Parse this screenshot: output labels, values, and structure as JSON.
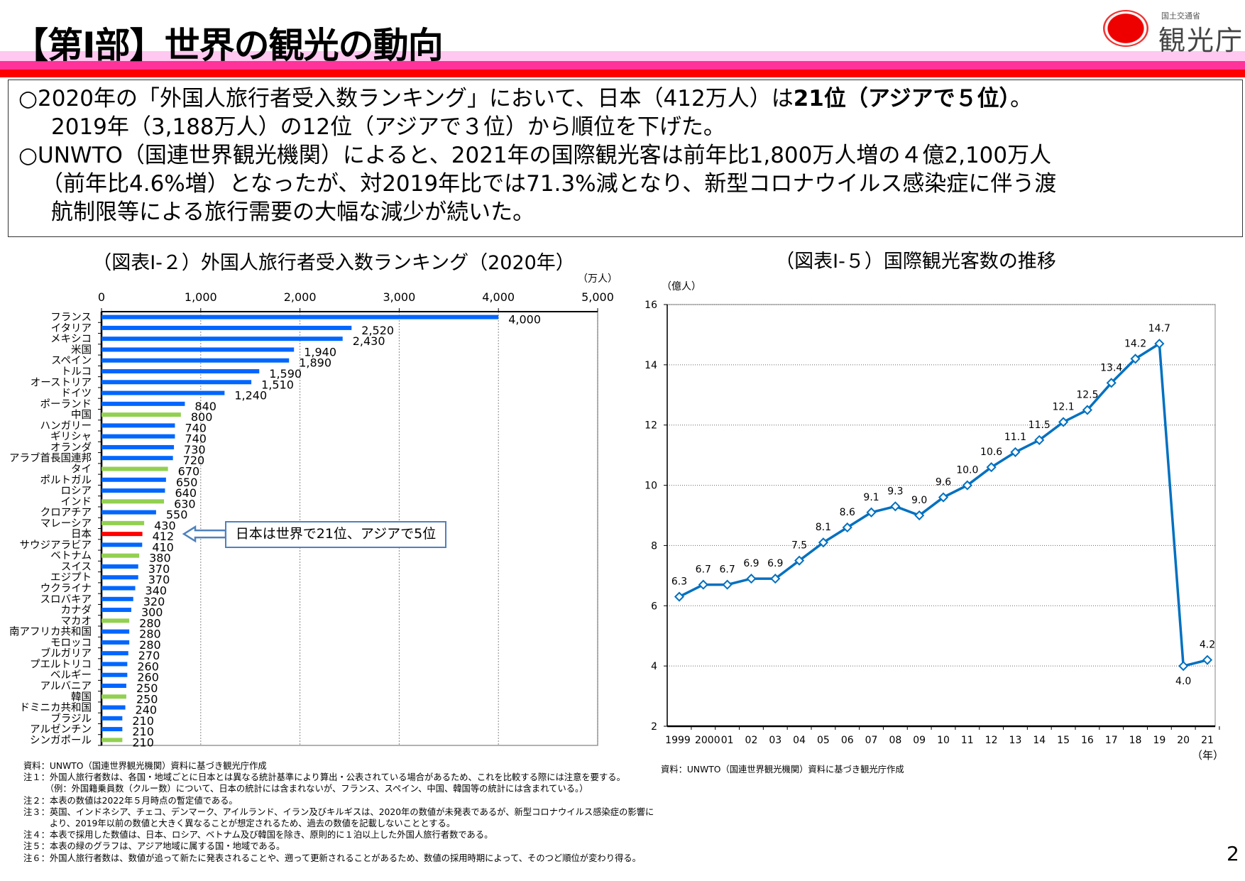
{
  "header": {
    "title": "【第Ⅰ部】世界の観光の動向",
    "logo_text": "観光庁",
    "logo_subtext": "国土交通省"
  },
  "colors": {
    "stripe_light": "#ffc8f0",
    "stripe_pink": "#ff3399",
    "stripe_red": "#ff0000",
    "bar_default": "#0066ff",
    "bar_asia": "#92d050",
    "bar_japan": "#ff0000",
    "line": "#0070c0"
  },
  "summary": {
    "lines": [
      {
        "pre": "○2020年の「外国人旅行者受入数ランキング」において、日本（412万人）は",
        "bold": "21位（アジアで５位）",
        "post": "。"
      },
      {
        "pre": "2019年（3,188万人）の12位（アジアで３位）から順位を下げた。"
      },
      {
        "pre": "○UNWTO（国連世界観光機関）によると、2021年の国際観光客は前年比1,800万人増の４億2,100万人"
      },
      {
        "pre": "（前年比4.6%増）となったが、対2019年比では71.3%減となり、新型コロナウイルス感染症に伴う渡"
      },
      {
        "pre": "航制限等による旅行需要の大幅な減少が続いた。"
      }
    ]
  },
  "chart_data": [
    {
      "type": "bar",
      "orientation": "horizontal",
      "title": "（図表Ⅰ-２）外国人旅行者受入数ランキング（2020年）",
      "unit": "（万人）",
      "xlim": [
        0,
        5000
      ],
      "ticks": [
        "0",
        "1,000",
        "2,000",
        "3,000",
        "4,000",
        "5,000"
      ],
      "grid": true,
      "categories": [
        "フランス",
        "イタリア",
        "メキシコ",
        "米国",
        "スペイン",
        "トルコ",
        "オーストリア",
        "ドイツ",
        "ポーランド",
        "中国",
        "ハンガリー",
        "ギリシャ",
        "オランダ",
        "アラブ首長国連邦",
        "タイ",
        "ポルトガル",
        "ロシア",
        "インド",
        "クロアチア",
        "マレーシア",
        "日本",
        "サウジアラビア",
        "ベトナム",
        "スイス",
        "エジプト",
        "ウクライナ",
        "スロバキア",
        "カナダ",
        "マカオ",
        "南アフリカ共和国",
        "モロッコ",
        "ブルガリア",
        "プエルトリコ",
        "ベルギー",
        "アルバニア",
        "韓国",
        "ドミニカ共和国",
        "ブラジル",
        "アルゼンチン",
        "シンガポール"
      ],
      "values": [
        4000,
        2520,
        2430,
        1940,
        1890,
        1590,
        1510,
        1240,
        840,
        800,
        740,
        740,
        730,
        720,
        670,
        650,
        640,
        630,
        550,
        430,
        412,
        410,
        380,
        370,
        370,
        340,
        320,
        300,
        280,
        280,
        280,
        270,
        260,
        260,
        250,
        250,
        240,
        210,
        210,
        210
      ],
      "labels": [
        "4,000",
        "2,520",
        "2,430",
        "1,940",
        "1,890",
        "1,590",
        "1,510",
        "1,240",
        "840",
        "800",
        "740",
        "740",
        "730",
        "720",
        "670",
        "650",
        "640",
        "630",
        "550",
        "430",
        "412",
        "410",
        "380",
        "370",
        "370",
        "340",
        "320",
        "300",
        "280",
        "280",
        "280",
        "270",
        "260",
        "260",
        "250",
        "250",
        "240",
        "210",
        "210",
        "210"
      ],
      "asia": [
        "中国",
        "タイ",
        "インド",
        "マレーシア",
        "ベトナム",
        "マカオ",
        "韓国",
        "シンガポール"
      ],
      "highlight": "日本",
      "callout": "日本は世界で21位、アジアで5位"
    },
    {
      "type": "line",
      "title": "（図表Ⅰ-５）国際観光客数の推移",
      "ylabel": "（億人）",
      "xlabel": "（年）",
      "ylim": [
        2,
        16
      ],
      "yticks": [
        2,
        4,
        6,
        8,
        10,
        12,
        14,
        16
      ],
      "grid": true,
      "x": [
        "1999",
        "2000",
        "01",
        "02",
        "03",
        "04",
        "05",
        "06",
        "07",
        "08",
        "09",
        "10",
        "11",
        "12",
        "13",
        "14",
        "15",
        "16",
        "17",
        "18",
        "19",
        "20",
        "21"
      ],
      "values": [
        6.3,
        6.7,
        6.7,
        6.9,
        6.9,
        7.5,
        8.1,
        8.6,
        9.1,
        9.3,
        9.0,
        9.6,
        10.0,
        10.6,
        11.1,
        11.5,
        12.1,
        12.5,
        13.4,
        14.2,
        14.7,
        4.0,
        4.2
      ],
      "labels": [
        "6.3",
        "6.7",
        "6.7",
        "6.9",
        "6.9",
        "7.5",
        "8.1",
        "8.6",
        "9.1",
        "9.3",
        "9.0",
        "9.6",
        "10.0",
        "10.6",
        "11.1",
        "11.5",
        "12.1",
        "12.5",
        "13.4",
        "14.2",
        "14.7",
        "4.0",
        "4.2"
      ]
    }
  ],
  "notes": {
    "left": [
      "資料：UNWTO（国連世界観光機関）資料に基づき観光庁作成",
      "注１：外国人旅行者数は、各国・地域ごとに日本とは異なる統計基準により算出・公表されている場合があるため、これを比較する際には注意を要する。",
      "　　　（例：外国籍乗員数（クルー数）について、日本の統計には含まれないが、フランス、スペイン、中国、韓国等の統計には含まれている。）",
      "注２：本表の数値は2022年５月時点の暫定値である。",
      "注３：英国、インドネシア、チェコ、デンマーク、アイルランド、イラン及びキルギスは、2020年の数値が未発表であるが、新型コロナウイルス感染症の影響に",
      "　　　より、2019年以前の数値と大きく異なることが想定されるため、過去の数値を記載しないこととする。",
      "注４：本表で採用した数値は、日本、ロシア、ベトナム及び韓国を除き、原則的に１泊以上した外国人旅行者数である。",
      "注５：本表の緑のグラフは、アジア地域に属する国・地域である。",
      "注６：外国人旅行者数は、数値が追って新たに発表されることや、遡って更新されることがあるため、数値の採用時期によって、そのつど順位が変わり得る。"
    ],
    "right": "資料：UNWTO（国連世界観光機関）資料に基づき観光庁作成"
  },
  "page_number": "2"
}
